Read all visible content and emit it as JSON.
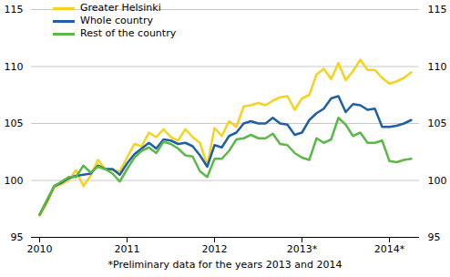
{
  "chart_data": {
    "type": "line",
    "caption": "*Preliminary data for the years 2013 and 2014",
    "categories": [
      "2010",
      null,
      null,
      null,
      null,
      null,
      null,
      null,
      null,
      null,
      null,
      null,
      "2011",
      null,
      null,
      null,
      null,
      null,
      null,
      null,
      null,
      null,
      null,
      null,
      "2012",
      null,
      null,
      null,
      null,
      null,
      null,
      null,
      null,
      null,
      null,
      null,
      "2013*",
      null,
      null,
      null,
      null,
      null,
      null,
      null,
      null,
      null,
      null,
      null,
      "2014*",
      null,
      null,
      null
    ],
    "series": [
      {
        "name": "Greater Helsinki",
        "color": "#f5d21f",
        "values": [
          96.9,
          98.0,
          99.4,
          99.7,
          100.0,
          100.9,
          99.5,
          100.4,
          101.8,
          101.0,
          100.9,
          100.8,
          102.0,
          103.2,
          103.0,
          104.2,
          103.8,
          104.5,
          103.8,
          103.5,
          104.5,
          103.8,
          103.3,
          101.3,
          104.6,
          103.9,
          105.2,
          104.7,
          106.5,
          106.6,
          106.8,
          106.6,
          107.0,
          107.3,
          107.4,
          106.2,
          107.2,
          107.5,
          109.3,
          109.8,
          108.9,
          110.3,
          108.8,
          109.6,
          110.6,
          109.7,
          109.7,
          109.0,
          108.5,
          108.7,
          109.0,
          109.5
        ]
      },
      {
        "name": "Whole country",
        "color": "#1f5fa6",
        "values": [
          97.0,
          98.2,
          99.5,
          99.8,
          100.2,
          100.4,
          100.5,
          100.6,
          101.3,
          101.0,
          101.0,
          100.5,
          101.5,
          102.3,
          102.8,
          103.3,
          102.8,
          103.6,
          103.5,
          103.2,
          103.3,
          103.0,
          102.2,
          101.2,
          103.1,
          102.9,
          103.9,
          104.2,
          105.0,
          105.2,
          105.0,
          105.0,
          105.5,
          105.0,
          104.9,
          104.0,
          104.2,
          105.3,
          105.9,
          106.3,
          107.2,
          107.4,
          106.0,
          106.7,
          106.6,
          106.2,
          106.3,
          104.7,
          104.7,
          104.8,
          105.0,
          105.3
        ]
      },
      {
        "name": "Rest of the country",
        "color": "#5cb848",
        "values": [
          97.0,
          98.3,
          99.5,
          99.9,
          100.3,
          100.3,
          101.3,
          100.7,
          101.2,
          101.0,
          100.6,
          99.9,
          101.0,
          102.0,
          102.6,
          102.9,
          102.4,
          103.4,
          103.2,
          102.8,
          102.2,
          102.1,
          100.8,
          100.3,
          101.9,
          101.9,
          102.6,
          103.6,
          103.7,
          104.0,
          103.7,
          103.7,
          104.1,
          103.2,
          103.1,
          102.4,
          102.0,
          101.8,
          103.7,
          103.3,
          103.6,
          105.5,
          104.9,
          103.9,
          104.2,
          103.3,
          103.3,
          103.5,
          101.7,
          101.6,
          101.8,
          101.9
        ]
      }
    ],
    "ylim": [
      95,
      115
    ],
    "yticks": [
      95,
      100,
      105,
      110,
      115
    ],
    "grid": true,
    "legend": "top-left"
  }
}
